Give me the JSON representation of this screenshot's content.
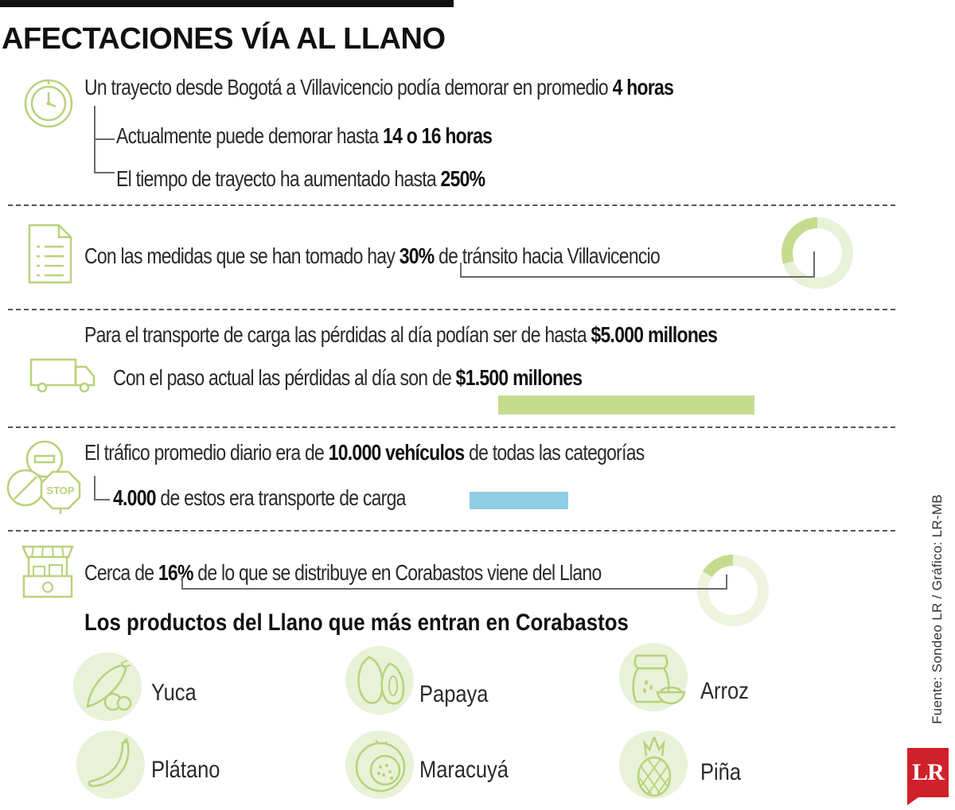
{
  "title": "AFECTACIONES VÍA AL LLANO",
  "section1": {
    "line1_pre": "Un trayecto desde Bogotá a Villavicencio podía demorar en promedio ",
    "line1_bold": "4 horas",
    "line2_pre": "Actualmente puede demorar hasta ",
    "line2_bold": "14 o 16 horas",
    "line3_pre": "El tiempo de trayecto ha aumentado hasta ",
    "line3_bold": "250%",
    "icon": "clock-icon"
  },
  "section2": {
    "pre": "Con las medidas que se han tomado hay ",
    "bold": "30%",
    "post": " de tránsito hacia Villavicencio",
    "donut_fraction": 0.3,
    "icon": "document-list-icon"
  },
  "section3": {
    "line1_pre": "Para el transporte de carga las pérdidas al día podían ser de hasta ",
    "line1_bold": "$5.000 millones",
    "line2_pre": "Con el paso actual las pérdidas al día son de ",
    "line2_bold": "$1.500 millones",
    "icon": "truck-icon",
    "bar_color": "#c5dc8f"
  },
  "section4": {
    "line1_pre": "El tráfico promedio diario era de ",
    "line1_bold": "10.000 vehículos",
    "line1_post": " de todas las categorías",
    "line2_bold": "4.000",
    "line2_post": " de estos era transporte de carga",
    "icon": "traffic-signs-icon",
    "bar_color": "#8fcde5"
  },
  "section5": {
    "pre": "Cerca de ",
    "bold": "16%",
    "post": " de lo que se distribuye en Corabastos viene del Llano",
    "donut_fraction": 0.16,
    "icon": "market-stall-icon"
  },
  "products": {
    "heading": "Los productos del Llano que más entran en Corabastos",
    "items": [
      "Yuca",
      "Papaya",
      "Arroz",
      "Plátano",
      "Maracuyá",
      "Piña"
    ]
  },
  "footer": {
    "source": "Fuente: Sondeo LR / Gráfico: LR-MB",
    "logo": "LR"
  },
  "colors": {
    "accent_green": "#c5dc8f",
    "light_green": "#e9f1d8",
    "blue": "#8fcde5"
  }
}
